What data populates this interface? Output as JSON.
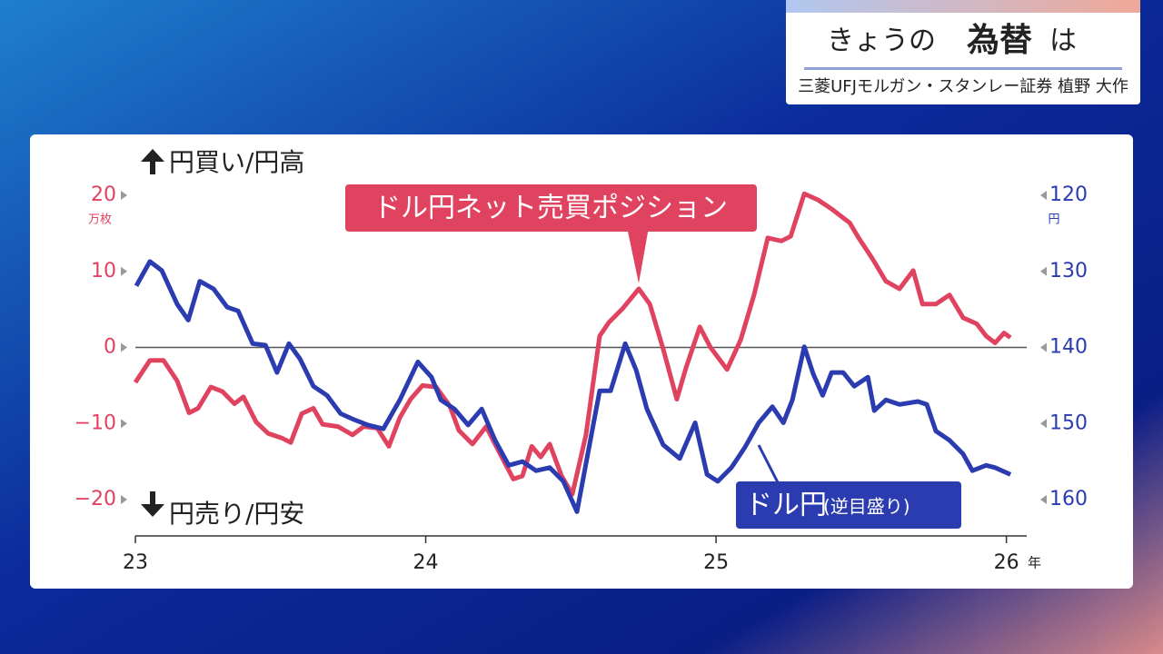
{
  "header": {
    "title_parts": [
      "きょうの",
      "為替",
      "は"
    ],
    "subtitle": "三菱UFJモルガン・スタンレー証券 植野 大作"
  },
  "chart_data": {
    "type": "line",
    "annotations": {
      "top": "円買い/円高",
      "bottom": "円売り/円安"
    },
    "y_unit": "万枚",
    "y2_unit": "円",
    "x_unit": "年",
    "xlim": [
      23,
      26.07
    ],
    "xticks": [
      23,
      24,
      25,
      26
    ],
    "ylim": [
      {
        "value": -20,
        "label": "−20"
      },
      20
    ],
    "yticks": [
      20,
      10,
      0,
      {
        "value": -10,
        "label": "−10"
      },
      {
        "value": -20,
        "label": "−20"
      }
    ],
    "y2lim": [
      160,
      120
    ],
    "y2ticks": [
      120,
      130,
      140,
      150,
      160
    ],
    "series": [
      {
        "name": "ドル円ネット売買ポジション",
        "color": "#e0435f",
        "x": [
          23.0,
          23.05,
          23.097,
          23.144,
          23.185,
          23.216,
          23.26,
          23.3,
          23.341,
          23.372,
          23.416,
          23.457,
          23.504,
          23.535,
          23.573,
          23.613,
          23.645,
          23.698,
          23.748,
          23.786,
          23.833,
          23.873,
          23.911,
          23.948,
          23.989,
          24.036,
          24.083,
          24.114,
          24.161,
          24.208,
          24.255,
          24.302,
          24.333,
          24.365,
          24.396,
          24.427,
          24.468,
          24.505,
          24.552,
          24.599,
          24.631,
          24.678,
          24.734,
          24.772,
          24.818,
          24.865,
          24.897,
          24.944,
          24.981,
          25.038,
          25.085,
          25.131,
          25.178,
          25.225,
          25.257,
          25.304,
          25.351,
          25.398,
          25.46,
          25.491,
          25.538,
          25.585,
          25.632,
          25.679,
          25.711,
          25.757,
          25.804,
          25.851,
          25.898,
          25.93,
          25.961,
          25.992,
          26.014
        ],
        "values": [
          -4.6,
          -1.7,
          -1.7,
          -4.4,
          -8.6,
          -8,
          -5.2,
          -5.8,
          -7.4,
          -6.5,
          -9.8,
          -11.3,
          -11.9,
          -12.5,
          -8.7,
          -8,
          -10.1,
          -10.4,
          -11.5,
          -10.4,
          -10.6,
          -13,
          -9.2,
          -6.8,
          -5,
          -5.2,
          -7.7,
          -10.9,
          -12.7,
          -10.4,
          -13.9,
          -17.3,
          -16.9,
          -13,
          -14.4,
          -12.7,
          -16.9,
          -19.3,
          -11.5,
          1.5,
          3.3,
          5.1,
          7.7,
          5.7,
          -0.2,
          -6.8,
          -2.6,
          2.7,
          0,
          -2.9,
          1,
          6.9,
          14.4,
          14,
          14.6,
          20.2,
          19.4,
          18.2,
          16.4,
          14.4,
          11.7,
          8.7,
          7.7,
          10.1,
          5.7,
          5.7,
          6.9,
          3.9,
          3.1,
          1.5,
          0.6,
          1.9,
          1.3
        ]
      },
      {
        "name": "ドル円",
        "note": "(逆目盛り)",
        "color": "#2b3bb0",
        "axis": "y2",
        "x": [
          23.003,
          23.05,
          23.091,
          23.144,
          23.182,
          23.222,
          23.269,
          23.316,
          23.354,
          23.404,
          23.448,
          23.488,
          23.529,
          23.567,
          23.613,
          23.66,
          23.707,
          23.754,
          23.801,
          23.854,
          23.911,
          23.973,
          24.02,
          24.052,
          24.099,
          24.146,
          24.193,
          24.239,
          24.286,
          24.333,
          24.38,
          24.427,
          24.474,
          24.521,
          24.552,
          24.599,
          24.637,
          24.687,
          24.725,
          24.762,
          24.818,
          24.875,
          24.928,
          24.969,
          25.006,
          25.053,
          25.1,
          25.147,
          25.194,
          25.232,
          25.263,
          25.304,
          25.335,
          25.367,
          25.398,
          25.438,
          25.476,
          25.523,
          25.545,
          25.585,
          25.632,
          25.695,
          25.726,
          25.757,
          25.804,
          25.851,
          25.883,
          25.93,
          25.961,
          26.014
        ],
        "values": [
          131.9,
          128.7,
          129.9,
          134.3,
          136.4,
          131.3,
          132.3,
          134.7,
          135.2,
          139.5,
          139.7,
          143.3,
          139.5,
          141.5,
          145.1,
          146.3,
          148.7,
          149.5,
          150.2,
          150.7,
          146.9,
          141.9,
          143.9,
          146.9,
          148.1,
          150.2,
          148.1,
          152.2,
          155.5,
          155,
          156.2,
          155.8,
          157.6,
          161.6,
          155.3,
          145.7,
          145.7,
          139.5,
          143,
          148.1,
          152.8,
          154.6,
          149.9,
          156.7,
          157.6,
          155.8,
          153.1,
          149.9,
          147.8,
          149.9,
          146.9,
          139.9,
          143.5,
          146.3,
          143.3,
          143.3,
          145.1,
          143.9,
          148.3,
          146.9,
          147.5,
          147.1,
          147.5,
          151,
          152.2,
          154,
          156.2,
          155.5,
          155.8,
          156.7
        ]
      }
    ]
  }
}
